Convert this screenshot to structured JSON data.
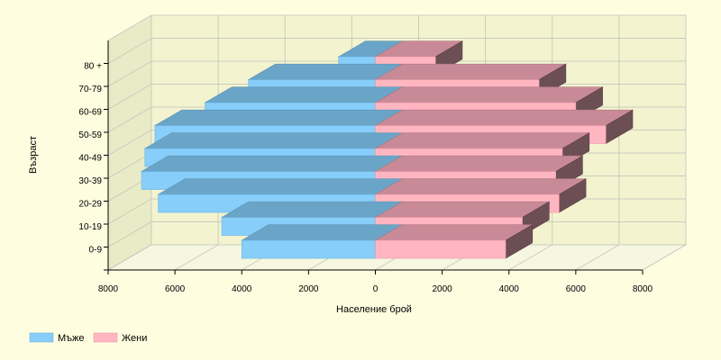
{
  "chart_data": {
    "type": "bar",
    "orientation": "horizontal",
    "subtype": "population-pyramid-3d",
    "categories": [
      "0-9",
      "10-19",
      "20-29",
      "30-39",
      "40-49",
      "50-59",
      "60-69",
      "70-79",
      "80 +"
    ],
    "series": [
      {
        "name": "Мъже",
        "side": "left",
        "color": "#87cefa",
        "values": [
          4000,
          4600,
          6500,
          7000,
          6900,
          6600,
          5100,
          3800,
          1100
        ]
      },
      {
        "name": "Жени",
        "side": "right",
        "color": "#ffb6c1",
        "values": [
          3900,
          4400,
          5500,
          5400,
          5600,
          6900,
          6000,
          4900,
          1800
        ]
      }
    ],
    "xlabel": "Население брой",
    "ylabel": "Възраст",
    "x_ticks": [
      "8000",
      "6000",
      "4000",
      "2000",
      "0",
      "2000",
      "4000",
      "6000",
      "8000"
    ],
    "xlim": [
      -8000,
      8000
    ],
    "grid": true,
    "legend_position": "bottom-left"
  },
  "colors": {
    "background": "#fffde0",
    "wall": "#f3f4cf",
    "grid": "#c9cbc0",
    "male_front": "#87cefa",
    "male_top": "#6aa5c8",
    "female_front": "#ffb6c1",
    "female_top": "#c98a97",
    "female_side": "#6b4f55"
  }
}
